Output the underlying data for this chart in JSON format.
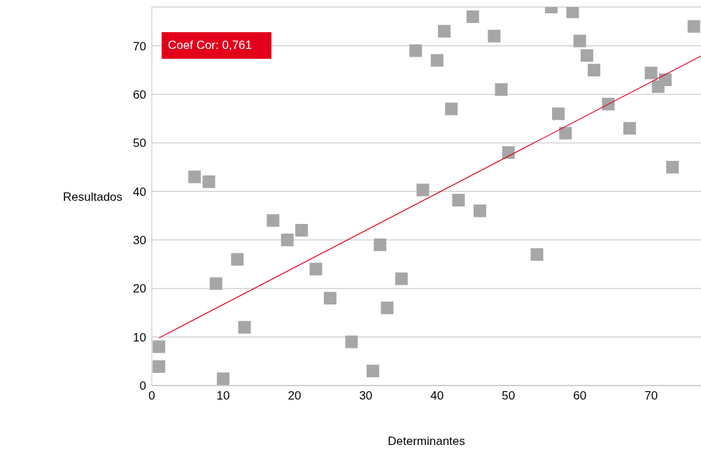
{
  "chart_data": {
    "type": "scatter",
    "xlabel": "Determinantes",
    "ylabel": "Resultados",
    "xlim": [
      0,
      77
    ],
    "ylim": [
      0,
      78
    ],
    "xticks": [
      0,
      10,
      20,
      30,
      40,
      50,
      60,
      70
    ],
    "yticks": [
      0,
      10,
      20,
      30,
      40,
      50,
      60,
      70
    ],
    "grid": "y",
    "marker": "square",
    "annotations": [
      "Coef Cor: 0,761"
    ],
    "series": [
      {
        "color": "#a6a6a6",
        "x": [
          1,
          1,
          6,
          8,
          9,
          10,
          12,
          13,
          17,
          19,
          21,
          23,
          25,
          28,
          31,
          32,
          33,
          35,
          37,
          38,
          40,
          41,
          42,
          43,
          45,
          46,
          48,
          49,
          50,
          54,
          56,
          57,
          58,
          59,
          60,
          61,
          62,
          64,
          67,
          70,
          71,
          72,
          73,
          76
        ],
        "values": [
          8,
          3.9,
          43,
          42,
          21,
          1.4,
          26,
          12,
          34,
          30,
          32,
          24,
          18,
          9,
          3,
          29,
          16,
          22,
          69,
          40.3,
          67,
          73,
          57,
          38.2,
          76,
          36,
          72,
          61,
          48,
          27,
          78,
          56,
          52,
          77,
          71,
          68,
          65,
          58,
          53,
          64.4,
          61.6,
          63,
          45,
          74
        ]
      },
      {
        "type": "line",
        "marker": "none",
        "color": "#e3001b",
        "x": [
          1,
          77
        ],
        "values": [
          9.8,
          67.9
        ]
      }
    ]
  }
}
